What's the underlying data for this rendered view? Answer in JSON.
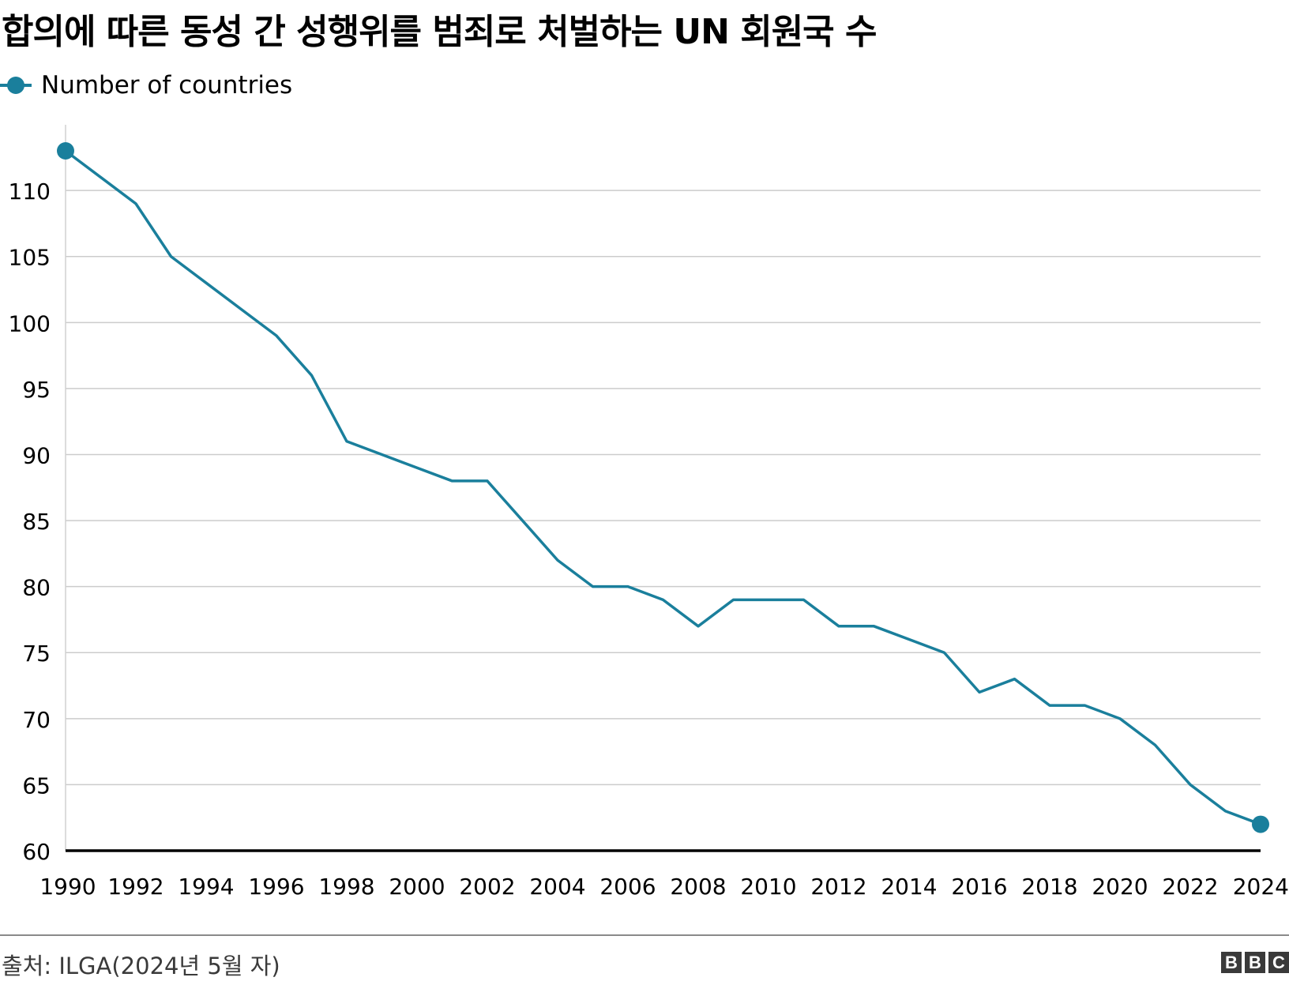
{
  "title": "합의에 따른 동성 간 성행위를 범죄로 처벌하는 UN 회원국 수",
  "source": "출처: ILGA(2024년 5월 자)",
  "logo_text": [
    "B",
    "B",
    "C"
  ],
  "colors": {
    "line": "#1a7f9c",
    "grid": "#cccccc",
    "axis": "#000000",
    "text": "#000000"
  },
  "chart_data": {
    "type": "line",
    "title": "합의에 따른 동성 간 성행위를 범죄로 처벌하는 UN 회원국 수",
    "xlabel": "",
    "ylabel": "",
    "xlim": [
      1990,
      2024
    ],
    "ylim": [
      60,
      113
    ],
    "x_ticks": [
      1990,
      1992,
      1994,
      1996,
      1998,
      2000,
      2002,
      2004,
      2006,
      2008,
      2010,
      2012,
      2014,
      2016,
      2018,
      2020,
      2022,
      2024
    ],
    "y_ticks": [
      60,
      65,
      70,
      75,
      80,
      85,
      90,
      95,
      100,
      105,
      110
    ],
    "grid": true,
    "legend_position": "top-left",
    "series": [
      {
        "name": "Number of countries",
        "markers": "endpoints",
        "x": [
          1990,
          1991,
          1992,
          1993,
          1994,
          1995,
          1996,
          1997,
          1998,
          1999,
          2000,
          2001,
          2002,
          2003,
          2004,
          2005,
          2006,
          2007,
          2008,
          2009,
          2010,
          2011,
          2012,
          2013,
          2014,
          2015,
          2016,
          2017,
          2018,
          2019,
          2020,
          2021,
          2022,
          2023,
          2024
        ],
        "y": [
          113,
          111,
          109,
          105,
          103,
          101,
          99,
          96,
          91,
          90,
          89,
          88,
          88,
          85,
          82,
          80,
          80,
          79,
          77,
          79,
          79,
          79,
          77,
          77,
          76,
          75,
          72,
          73,
          71,
          71,
          70,
          68,
          65,
          63,
          62
        ]
      }
    ]
  }
}
